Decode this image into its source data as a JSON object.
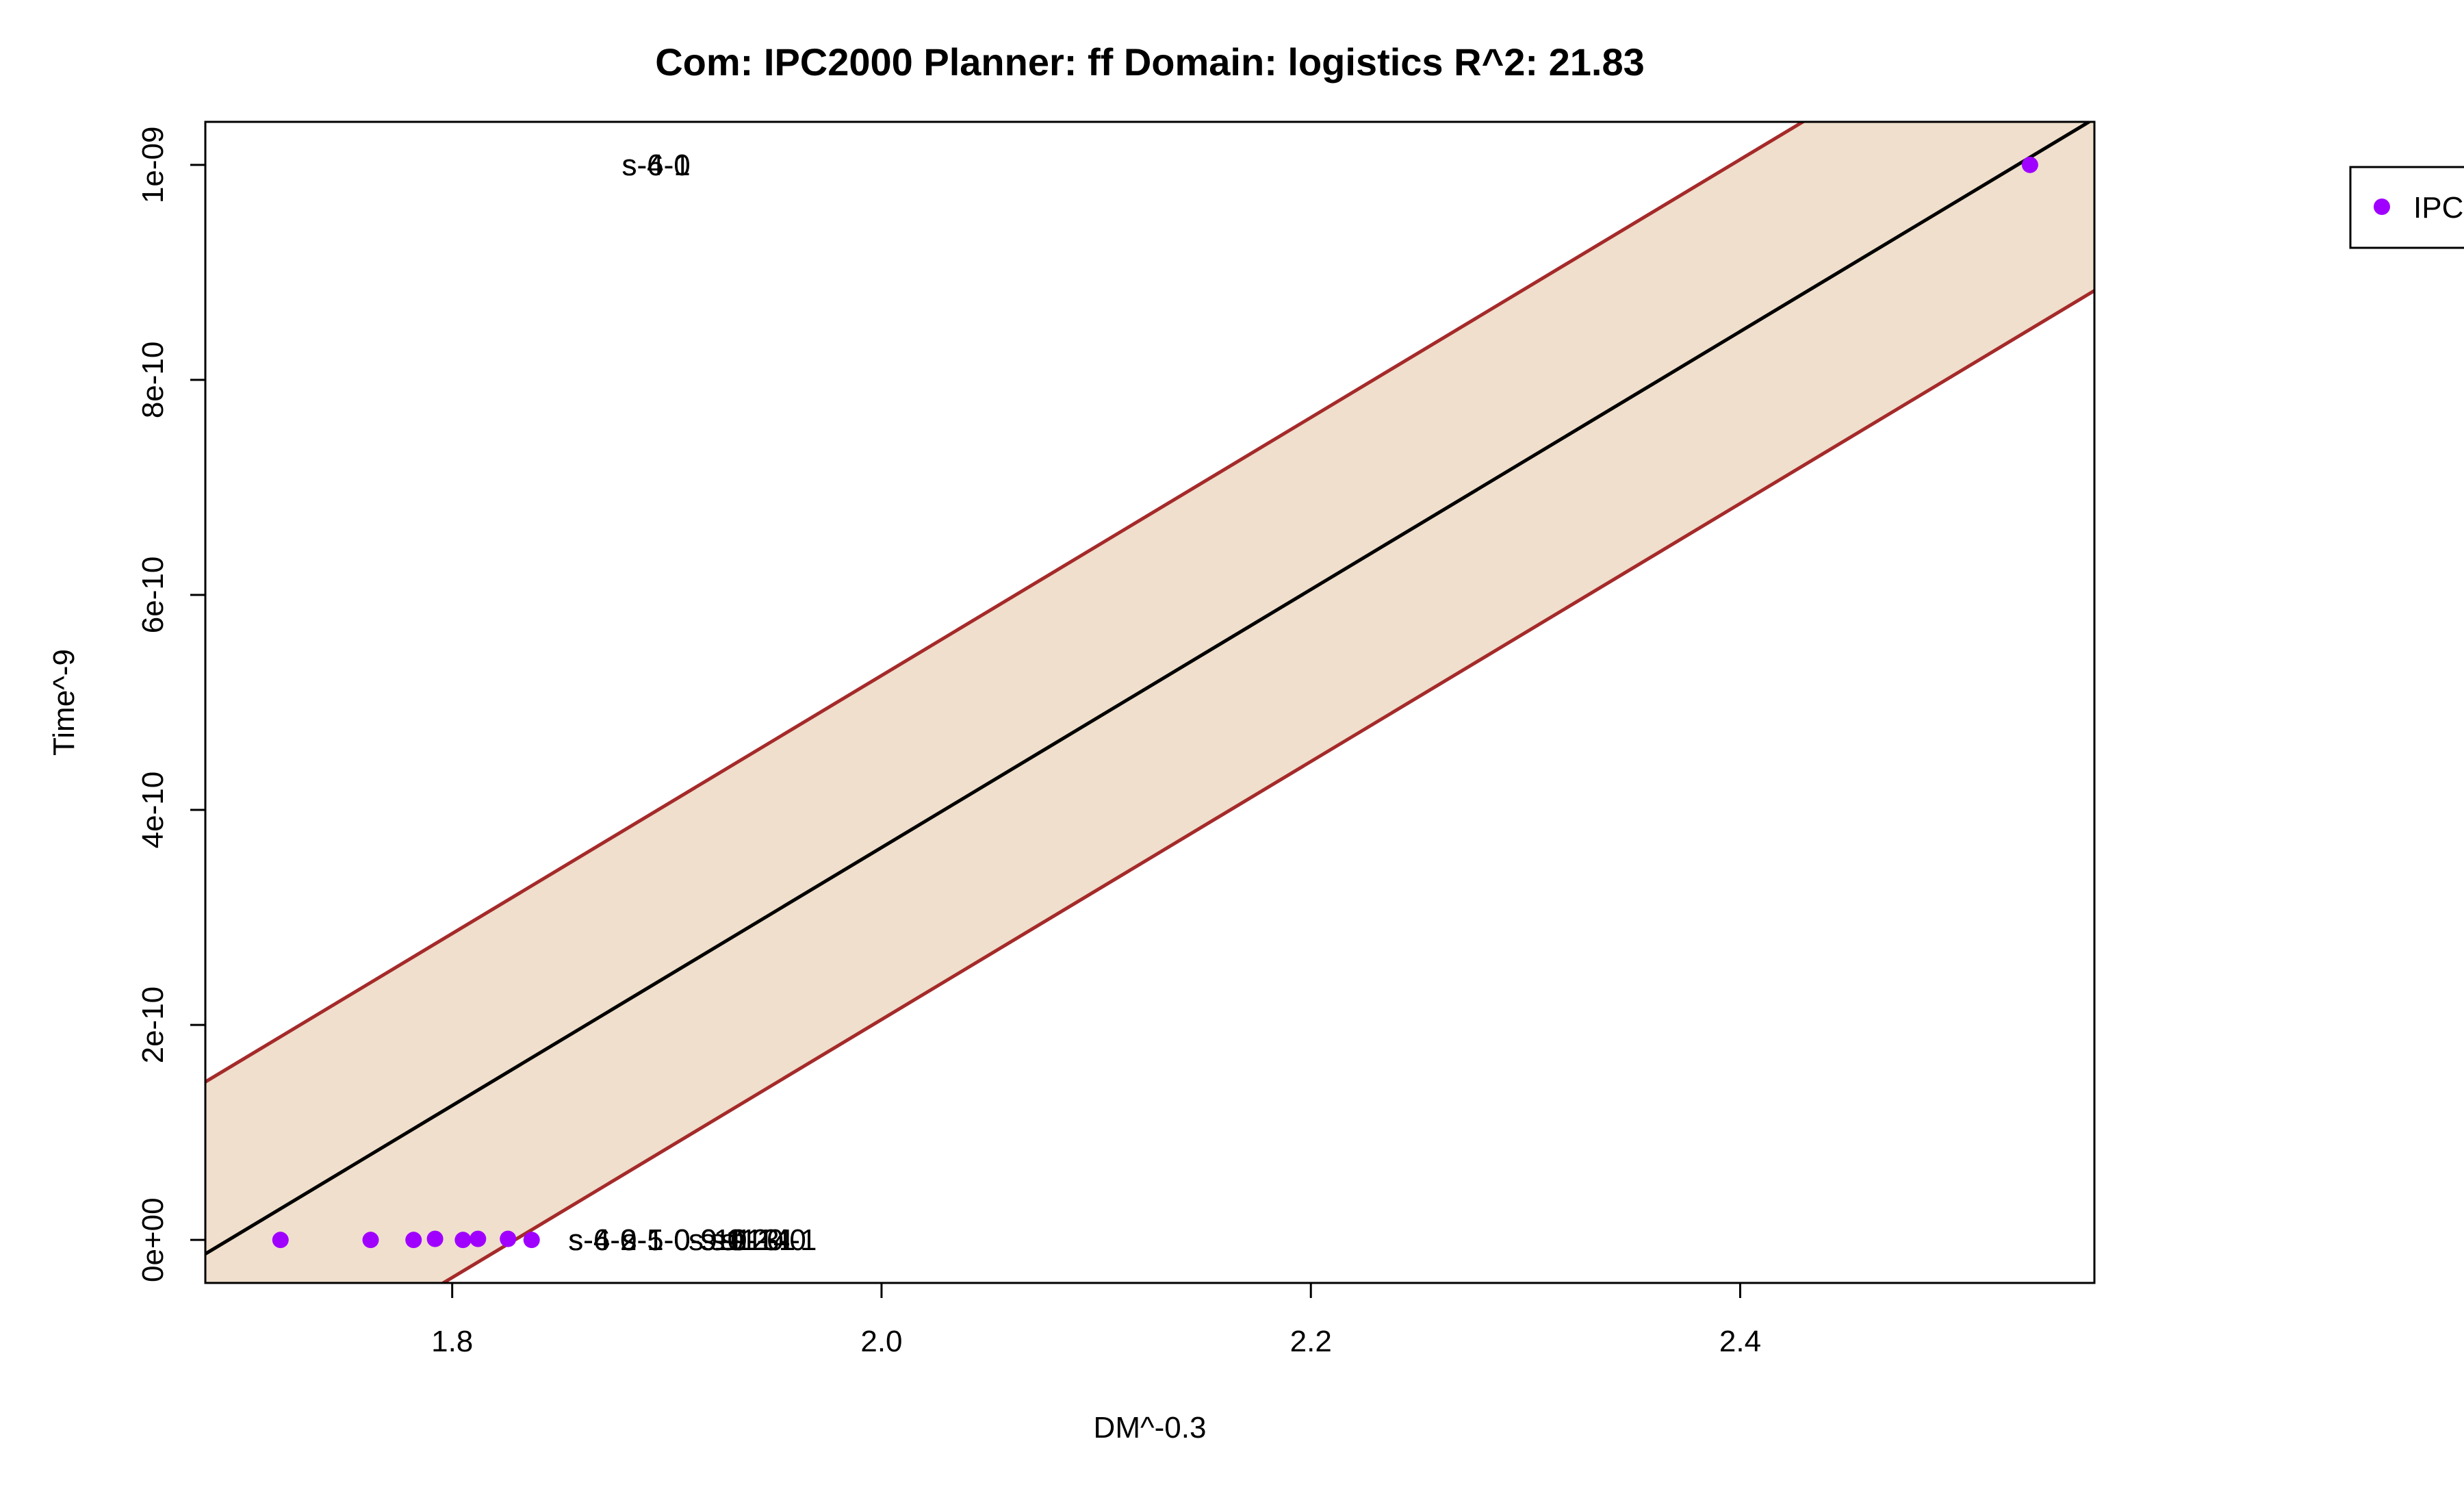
{
  "chart_data": {
    "type": "scatter",
    "title": "Com: IPC2000 Planner: ff Domain: logistics R^2: 21.83",
    "xlabel": "DM^-0.3",
    "ylabel": "Time^-9",
    "xlim": [
      1.685,
      2.565
    ],
    "ylim": [
      -4e-11,
      1.04e-09
    ],
    "x_ticks": [
      1.8,
      2.0,
      2.2,
      2.4
    ],
    "x_tick_labels": [
      "1.8",
      "2.0",
      "2.2",
      "2.4"
    ],
    "y_ticks": [
      0,
      2e-10,
      4e-10,
      6e-10,
      8e-10,
      1e-09
    ],
    "y_tick_labels": [
      "0e+00",
      "2e-10",
      "4e-10",
      "6e-10",
      "8e-10",
      "1e-09"
    ],
    "grid": false,
    "legend": {
      "placement": "top-right",
      "entries": [
        {
          "label": "IPC",
          "color": "#a000ff"
        }
      ]
    },
    "series": [
      {
        "color": "#a000ff",
        "points": [
          {
            "x": 1.72,
            "y": 0
          },
          {
            "x": 1.762,
            "y": 0
          },
          {
            "x": 1.782,
            "y": 0
          },
          {
            "x": 1.792,
            "y": 1e-12
          },
          {
            "x": 1.805,
            "y": 0
          },
          {
            "x": 1.812,
            "y": 1e-12
          },
          {
            "x": 1.826,
            "y": 1e-12
          },
          {
            "x": 1.837,
            "y": 0
          },
          {
            "x": 2.535,
            "y": 1e-09
          }
        ]
      }
    ],
    "point_labels": [
      {
        "text": "s-6-0",
        "x": 1.895,
        "y": 1e-09
      },
      {
        "text": "s-4-1",
        "x": 1.895,
        "y": 1e-09
      },
      {
        "text": "s-6-2-1-0-9-1",
        "x": 1.895,
        "y": 0
      },
      {
        "text": "s-4-0-1-0-9-0",
        "x": 1.895,
        "y": 0
      },
      {
        "text": "s-5-0",
        "x": 1.895,
        "y": 0
      },
      {
        "text": "s-10-1",
        "x": 1.93,
        "y": 0
      },
      {
        "text": "s-11-0",
        "x": 1.935,
        "y": 0
      },
      {
        "text": "s-12-1",
        "x": 1.94,
        "y": 0
      },
      {
        "text": "s-13-0",
        "x": 1.945,
        "y": 0
      },
      {
        "text": "s-14-1",
        "x": 1.95,
        "y": 0
      }
    ],
    "fit": {
      "slope": 1.2e-09,
      "intercept": -2.035e-09,
      "band_halfwidth": 1.6e-10,
      "line_color": "#000000",
      "band_line_color": "#a52a2a",
      "band_fill": "#efdfcc"
    }
  }
}
